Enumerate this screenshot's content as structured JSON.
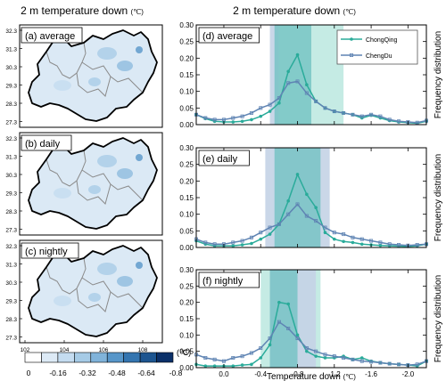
{
  "left_title": "2 m temperature down",
  "right_title": "2 m temperature down",
  "title_unit": "(℃)",
  "colors": {
    "chongqing": "#2aab9a",
    "chengdu": "#5f84b3",
    "band_dark": "#6cc0c0",
    "band_light": "#bfe9e1",
    "band_blue": "#c4d3e6",
    "map_boundary": "#000000",
    "city_boundary": "#8a8a8a"
  },
  "maps": {
    "lat_ticks": [
      "32.3",
      "31.3",
      "30.3",
      "29.3",
      "28.3",
      "27.3"
    ],
    "lon_ticks": [
      "102",
      "104",
      "106",
      "108"
    ],
    "panels": [
      {
        "label": "(a) average"
      },
      {
        "label": "(b) daily"
      },
      {
        "label": "(c) nightly"
      }
    ]
  },
  "colorbar": {
    "labels": [
      "0",
      "-0.16",
      "-0.32",
      "-0.48",
      "-0.64",
      "-0.8"
    ],
    "unit": "(℃)",
    "colors": [
      "#ffffff",
      "#ddeaf6",
      "#c4dcf0",
      "#a6cbe6",
      "#80b3da",
      "#5796c9",
      "#3475b0",
      "#1d5590",
      "#0b3069"
    ]
  },
  "chart_data": [
    {
      "type": "line",
      "panel": "(d) average",
      "x": [
        0.3,
        0.2,
        0.1,
        0.0,
        -0.1,
        -0.2,
        -0.3,
        -0.4,
        -0.5,
        -0.6,
        -0.7,
        -0.8,
        -0.9,
        -1.0,
        -1.1,
        -1.2,
        -1.3,
        -1.4,
        -1.5,
        -1.6,
        -1.7,
        -1.8,
        -1.9,
        -2.0,
        -2.1,
        -2.2
      ],
      "series": [
        {
          "name": "ChongQing",
          "values": [
            0.03,
            0.018,
            0.01,
            0.008,
            0.008,
            0.01,
            0.015,
            0.025,
            0.04,
            0.065,
            0.16,
            0.21,
            0.12,
            0.07,
            0.05,
            0.04,
            0.035,
            0.03,
            0.02,
            0.028,
            0.02,
            0.012,
            0.008,
            0.006,
            0.004,
            0.01
          ]
        },
        {
          "name": "ChengDu",
          "values": [
            0.03,
            0.02,
            0.015,
            0.015,
            0.02,
            0.025,
            0.035,
            0.05,
            0.06,
            0.08,
            0.125,
            0.13,
            0.095,
            0.07,
            0.05,
            0.04,
            0.035,
            0.03,
            0.025,
            0.03,
            0.025,
            0.015,
            0.01,
            0.008,
            0.006,
            0.012
          ]
        }
      ],
      "bands": [
        [
          -0.6,
          -1.3,
          "light"
        ],
        [
          -0.5,
          -0.6,
          "blue"
        ],
        [
          -0.55,
          -0.95,
          "dark"
        ]
      ],
      "xlim": [
        0.3,
        -2.2
      ],
      "ylim": [
        0,
        0.3
      ],
      "legend": "top-right",
      "ylabel": "Frequency distribution"
    },
    {
      "type": "line",
      "panel": "(e) daily",
      "x": [
        0.3,
        0.2,
        0.1,
        0.0,
        -0.1,
        -0.2,
        -0.3,
        -0.4,
        -0.5,
        -0.6,
        -0.7,
        -0.8,
        -0.9,
        -1.0,
        -1.1,
        -1.2,
        -1.3,
        -1.4,
        -1.5,
        -1.6,
        -1.7,
        -1.8,
        -1.9,
        -2.0,
        -2.1,
        -2.2
      ],
      "series": [
        {
          "name": "ChongQing",
          "values": [
            0.02,
            0.01,
            0.005,
            0.005,
            0.005,
            0.008,
            0.012,
            0.025,
            0.04,
            0.07,
            0.14,
            0.22,
            0.16,
            0.12,
            0.045,
            0.025,
            0.018,
            0.015,
            0.01,
            0.008,
            0.006,
            0.005,
            0.004,
            0.003,
            0.005,
            0.01
          ]
        },
        {
          "name": "ChengDu",
          "values": [
            0.025,
            0.015,
            0.01,
            0.01,
            0.015,
            0.02,
            0.03,
            0.045,
            0.06,
            0.07,
            0.1,
            0.13,
            0.095,
            0.08,
            0.06,
            0.045,
            0.04,
            0.03,
            0.025,
            0.02,
            0.015,
            0.01,
            0.008,
            0.006,
            0.008,
            0.01
          ]
        }
      ],
      "bands": [
        [
          -0.45,
          -1.15,
          "blue"
        ],
        [
          -0.55,
          -1.05,
          "dark"
        ]
      ],
      "xlim": [
        0.3,
        -2.2
      ],
      "ylim": [
        0,
        0.3
      ],
      "ylabel": "Frequency distribution"
    },
    {
      "type": "line",
      "panel": "(f) nightly",
      "x": [
        0.3,
        0.2,
        0.1,
        0.0,
        -0.1,
        -0.2,
        -0.3,
        -0.4,
        -0.5,
        -0.6,
        -0.7,
        -0.8,
        -0.9,
        -1.0,
        -1.1,
        -1.2,
        -1.3,
        -1.4,
        -1.5,
        -1.6,
        -1.7,
        -1.8,
        -1.9,
        -2.0,
        -2.1,
        -2.2
      ],
      "series": [
        {
          "name": "ChongQing",
          "values": [
            0.01,
            0.005,
            0.005,
            0.005,
            0.005,
            0.008,
            0.01,
            0.03,
            0.07,
            0.2,
            0.195,
            0.1,
            0.05,
            0.035,
            0.03,
            0.03,
            0.035,
            0.025,
            0.03,
            0.02,
            0.015,
            0.012,
            0.01,
            0.008,
            0.005,
            0.02
          ]
        },
        {
          "name": "ChengDu",
          "values": [
            0.04,
            0.03,
            0.025,
            0.02,
            0.03,
            0.035,
            0.045,
            0.06,
            0.09,
            0.14,
            0.12,
            0.09,
            0.06,
            0.05,
            0.04,
            0.035,
            0.03,
            0.025,
            0.02,
            0.018,
            0.015,
            0.012,
            0.01,
            0.008,
            0.01,
            0.02
          ]
        }
      ],
      "bands": [
        [
          -0.4,
          -1.05,
          "light"
        ],
        [
          -0.5,
          -1.0,
          "blue"
        ],
        [
          -0.5,
          -0.8,
          "dark"
        ]
      ],
      "xlim": [
        0.3,
        -2.2
      ],
      "ylim": [
        0,
        0.3
      ],
      "xlabel": "Temperature down",
      "xlabel_unit": "(℃)",
      "ylabel": "Frequency distribution"
    }
  ],
  "line_axes": {
    "y_ticks": [
      "0.00",
      "0.05",
      "0.10",
      "0.15",
      "0.20",
      "0.25",
      "0.30"
    ],
    "x_ticks": [
      "0.0",
      "-0.4",
      "-0.8",
      "-1.2",
      "-1.6",
      "-2.0"
    ]
  }
}
